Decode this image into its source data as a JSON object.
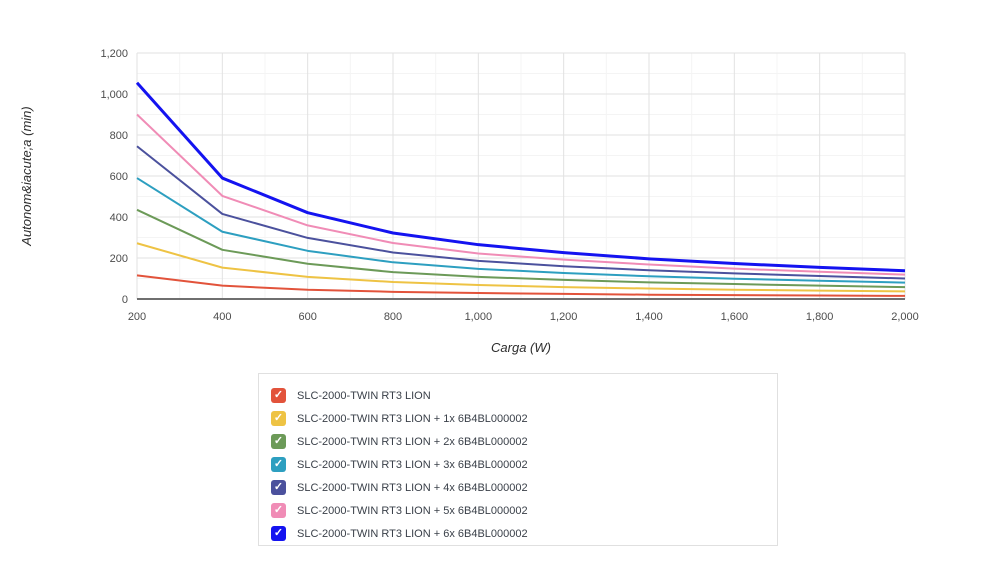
{
  "chart_data": {
    "type": "line",
    "title": "",
    "xlabel": "Carga (W)",
    "ylabel": "Autonom&iacute;a (min)",
    "xlim": [
      200,
      2000
    ],
    "ylim": [
      0,
      1200
    ],
    "x": [
      200,
      400,
      600,
      800,
      1000,
      1200,
      1400,
      1600,
      1800,
      2000
    ],
    "x_tick_labels": [
      "200",
      "400",
      "600",
      "800",
      "1,000",
      "1,200",
      "1,400",
      "1,600",
      "1,800",
      "2,000"
    ],
    "y_ticks": [
      0,
      200,
      400,
      600,
      800,
      1000,
      1200
    ],
    "y_tick_labels": [
      "0",
      "200",
      "400",
      "600",
      "800",
      "1,000",
      "1,200"
    ],
    "grid": "major and minor gridlines on, minor every 100",
    "legend_position": "bottom",
    "series": [
      {
        "name": "SLC-2000-TWIN RT3 LION",
        "color": "#e2533b",
        "values": [
          115,
          65,
          45,
          35,
          29,
          25,
          21,
          19,
          17,
          15
        ]
      },
      {
        "name": "SLC-2000-TWIN RT3 LION + 1x 6B4BL000002",
        "color": "#eec344",
        "values": [
          272,
          153,
          108,
          83,
          68,
          58,
          51,
          45,
          41,
          37
        ]
      },
      {
        "name": "SLC-2000-TWIN RT3 LION + 2x 6B4BL000002",
        "color": "#6c9a58",
        "values": [
          435,
          240,
          172,
          131,
          108,
          93,
          81,
          73,
          65,
          58
        ]
      },
      {
        "name": "SLC-2000-TWIN RT3 LION + 3x 6B4BL000002",
        "color": "#2d9fc0",
        "values": [
          590,
          328,
          235,
          179,
          147,
          127,
          111,
          99,
          89,
          80
        ]
      },
      {
        "name": "SLC-2000-TWIN RT3 LION + 4x 6B4BL000002",
        "color": "#4b519d",
        "values": [
          745,
          415,
          298,
          227,
          186,
          160,
          140,
          125,
          112,
          100
        ]
      },
      {
        "name": "SLC-2000-TWIN RT3 LION + 5x 6B4BL000002",
        "color": "#f08cb6",
        "values": [
          900,
          503,
          359,
          273,
          222,
          192,
          168,
          148,
          133,
          119
        ]
      },
      {
        "name": "SLC-2000-TWIN RT3 LION + 6x 6B4BL000002",
        "color": "#1413f0",
        "values": [
          1055,
          590,
          421,
          322,
          265,
          226,
          196,
          173,
          154,
          138
        ]
      }
    ],
    "colors": {
      "grid_major": "#e2e2e2",
      "grid_minor": "#f4f4f4",
      "axis_line": "#6f6f6f",
      "tick_text": "#4c4c4c",
      "axis_title_text": "#2d2d2d"
    }
  },
  "legend": {
    "check_glyph": "✓"
  }
}
